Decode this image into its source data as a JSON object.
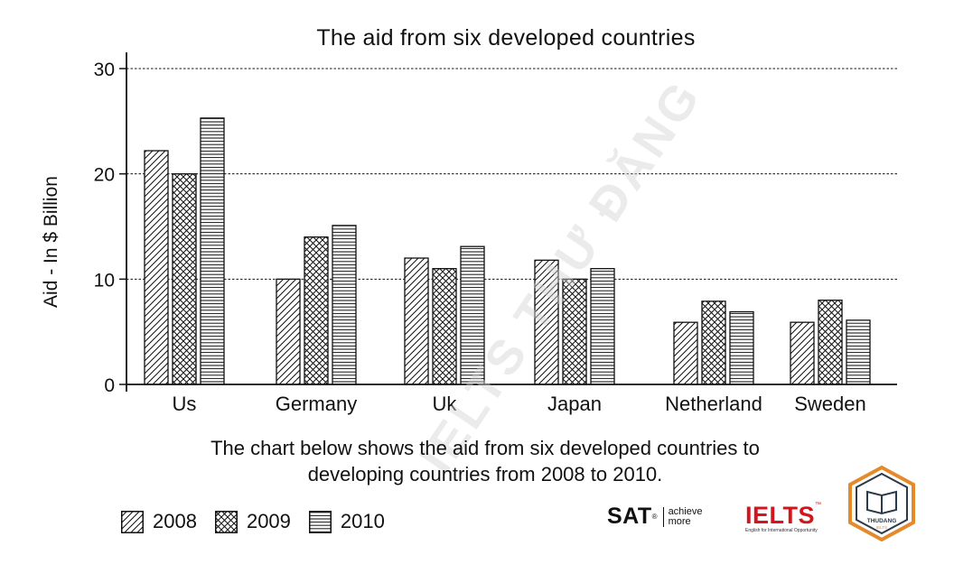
{
  "chart_data": {
    "type": "bar",
    "title": "The aid from six  developed countries",
    "ylabel": "Aid - In $ Billion",
    "xlabel": "",
    "categories": [
      "Us",
      "Germany",
      "Uk",
      "Japan",
      "Netherland",
      "Sweden"
    ],
    "series": [
      {
        "name": "2008",
        "pattern": "diagonal",
        "values": [
          22.2,
          10,
          12,
          11.8,
          5.9,
          5.9
        ]
      },
      {
        "name": "2009",
        "pattern": "crosshatch",
        "values": [
          20,
          14,
          11,
          10,
          7.9,
          8
        ]
      },
      {
        "name": "2010",
        "pattern": "horizontal",
        "values": [
          25.3,
          15.1,
          13.1,
          11,
          6.9,
          6.1
        ]
      }
    ],
    "ylim": [
      0,
      30
    ],
    "yticks": [
      0,
      10,
      20,
      30
    ],
    "grid": "horizontal-dashed",
    "legend_position": "bottom-left"
  },
  "caption": {
    "line1": "The chart below shows the aid from six developed countries to",
    "line2": "developing countries from 2008 to 2010."
  },
  "brands": {
    "sat": "SAT",
    "sat_registered": "®",
    "sat_tag_1": "achieve",
    "sat_tag_2": "more",
    "ielts": "IELTS",
    "ielts_tm": "™",
    "ielts_tag": "English for International Opportunity",
    "badge_text": "THUDANG",
    "badge_sub": "IELTS"
  },
  "watermark": "IELTS THƯ ĐĂNG",
  "colors": {
    "ink": "#111111",
    "ielts_red": "#d4161c",
    "badge_orange": "#e58a2a",
    "badge_dark": "#2b3a4a"
  }
}
